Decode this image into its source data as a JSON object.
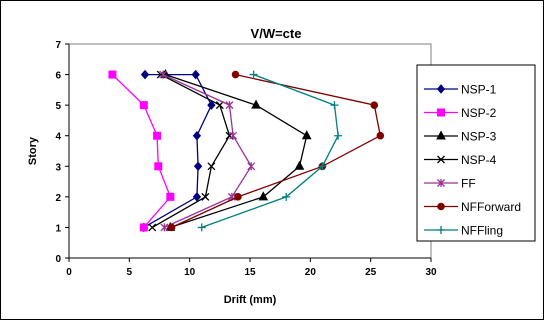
{
  "chart_data": {
    "type": "line",
    "title": "V/W=cte",
    "xlabel": "Drift (mm)",
    "ylabel": "Story",
    "xlim": [
      0,
      30
    ],
    "ylim": [
      0,
      7
    ],
    "xticks": [
      "0",
      "5",
      "10",
      "15",
      "20",
      "25",
      "30"
    ],
    "yticks": [
      "0",
      "1",
      "2",
      "3",
      "4",
      "5",
      "6",
      "7"
    ],
    "grid": false,
    "legend_position": "right",
    "series": [
      {
        "name": "NSP-1",
        "color": "#000080",
        "marker": "diamond",
        "x": [
          6.2,
          10.6,
          10.7,
          10.6,
          11.8,
          10.5,
          6.3
        ],
        "y": [
          1,
          2,
          3,
          4,
          5,
          6,
          6
        ]
      },
      {
        "name": "NSP-2",
        "color": "#FF00FF",
        "marker": "square",
        "x": [
          6.2,
          8.4,
          7.4,
          7.3,
          6.2,
          3.6
        ],
        "y": [
          1,
          2,
          3,
          4,
          5,
          6
        ]
      },
      {
        "name": "NSP-3",
        "color": "#000000",
        "marker": "triangle",
        "x": [
          8.4,
          16.1,
          19.1,
          19.7,
          15.5,
          8.0
        ],
        "y": [
          1,
          2,
          3,
          4,
          5,
          6
        ]
      },
      {
        "name": "NSP-4",
        "color": "#000000",
        "marker": "x",
        "x": [
          6.9,
          11.3,
          11.8,
          13.3,
          12.5,
          7.6
        ],
        "y": [
          1,
          2,
          3,
          4,
          5,
          6
        ]
      },
      {
        "name": "FF",
        "color": "#993399",
        "marker": "star",
        "x": [
          7.9,
          13.5,
          15.1,
          13.6,
          13.3,
          7.8
        ],
        "y": [
          1,
          2,
          3,
          4,
          5,
          6
        ]
      },
      {
        "name": "NFForward",
        "color": "#800000",
        "marker": "circle",
        "x": [
          8.5,
          14.0,
          21.0,
          25.8,
          25.3,
          13.8
        ],
        "y": [
          1,
          2,
          3,
          4,
          5,
          6
        ]
      },
      {
        "name": "NFFling",
        "color": "#008080",
        "marker": "plus",
        "x": [
          11.0,
          18.0,
          21.0,
          22.3,
          22.0,
          15.3
        ],
        "y": [
          1,
          2,
          3,
          4,
          5,
          6
        ]
      }
    ]
  }
}
